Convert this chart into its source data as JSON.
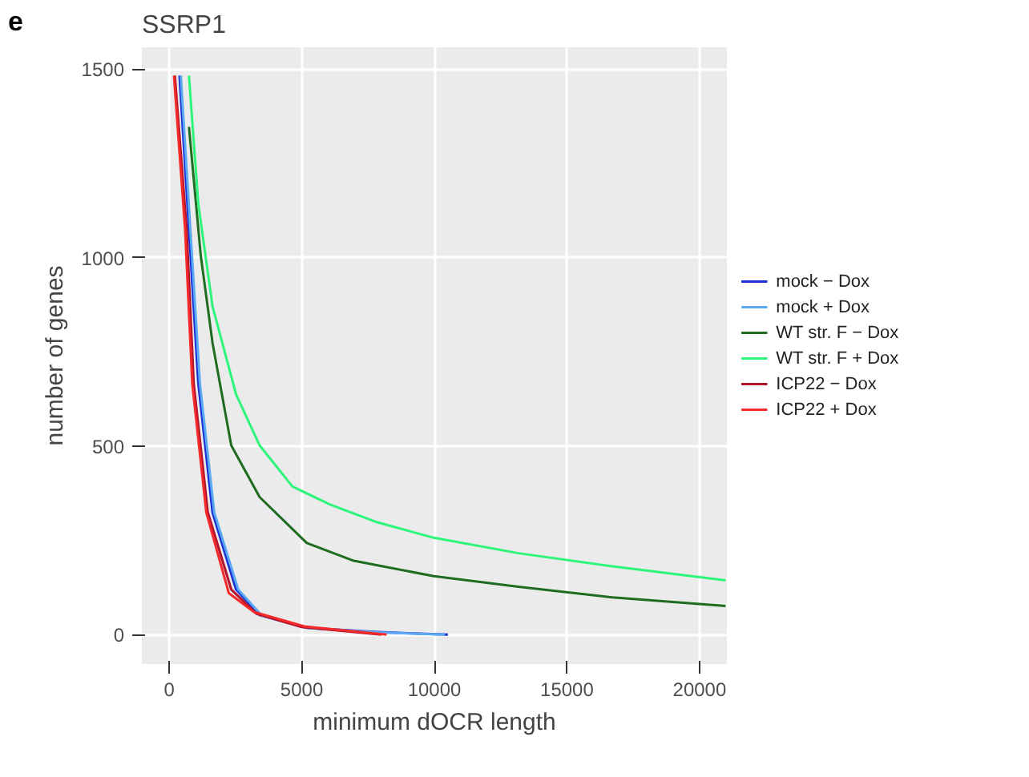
{
  "chart_data": {
    "type": "line",
    "title": "SSRP1",
    "xlabel": "minimum dOCR length",
    "ylabel": "number of genes",
    "annotations": [
      "e"
    ],
    "xlim": [
      -1030,
      21030
    ],
    "ylim": [
      -78,
      1558
    ],
    "xticks": [
      0,
      5000,
      10000,
      15000,
      20000
    ],
    "yticks": [
      0,
      500,
      1000,
      1500
    ],
    "grid": true,
    "legend": "right",
    "line_style": "solid",
    "marker": "none",
    "series": [
      {
        "name": "mock − Dox",
        "color": "#1c2fd6",
        "x": [
          390,
          746,
          1100,
          1635,
          2520,
          3410,
          5190,
          7850,
          10510
        ],
        "values": [
          1483,
          1074,
          666,
          324,
          120,
          52,
          18,
          7,
          0
        ]
      },
      {
        "name": "mock + Dox",
        "color": "#5aa9f5",
        "x": [
          440,
          800,
          1160,
          1700,
          2600,
          3500,
          5300,
          7900,
          10400
        ],
        "values": [
          1483,
          1074,
          666,
          324,
          120,
          50,
          17,
          6,
          0
        ]
      },
      {
        "name": "WT str. F − Dox",
        "color": "#1f6b1f",
        "x": [
          746,
          1190,
          1635,
          2340,
          3410,
          5190,
          6960,
          9980,
          13170,
          16720,
          20980
        ],
        "values": [
          1347,
          1006,
          774,
          502,
          365,
          243,
          196,
          155,
          127,
          99,
          76
        ]
      },
      {
        "name": "WT str. F + Dox",
        "color": "#2cf57a",
        "x": [
          746,
          1100,
          1635,
          2520,
          3410,
          4650,
          6070,
          7850,
          9980,
          13170,
          16720,
          20980
        ],
        "values": [
          1483,
          1142,
          871,
          638,
          502,
          393,
          345,
          298,
          257,
          216,
          181,
          144
        ]
      },
      {
        "name": "ICP22 − Dox",
        "color": "#b3122b",
        "x": [
          215,
          660,
          926,
          1458,
          2340,
          3300,
          5000,
          8000
        ],
        "values": [
          1483,
          1074,
          666,
          324,
          120,
          55,
          20,
          0
        ]
      },
      {
        "name": "ICP22 + Dox",
        "color": "#f52a2a",
        "x": [
          180,
          600,
          870,
          1400,
          2250,
          3200,
          5100,
          8200
        ],
        "values": [
          1483,
          1074,
          666,
          324,
          110,
          60,
          22,
          0
        ]
      }
    ]
  }
}
